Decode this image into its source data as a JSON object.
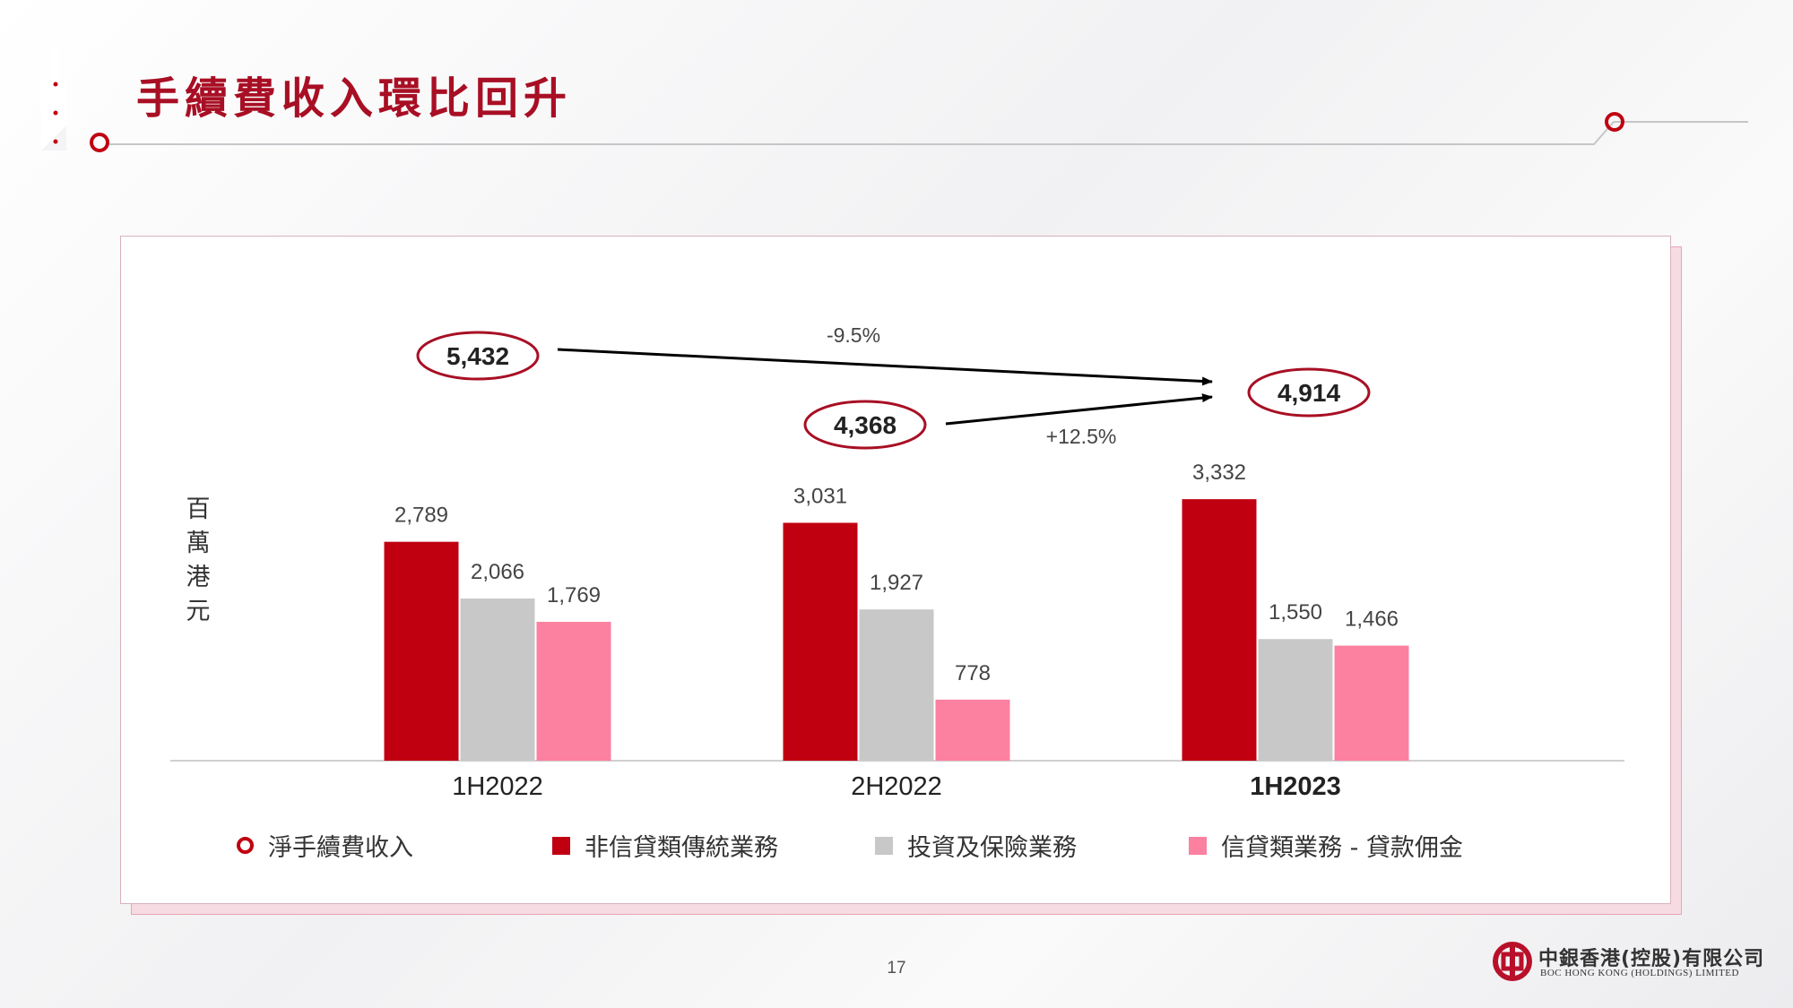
{
  "slide": {
    "title": "手續費收入環比回升",
    "page_number": "17",
    "logo": {
      "name_cn": "中銀香港(控股)有限公司",
      "name_en": "BOC HONG KONG (HOLDINGS) LIMITED"
    }
  },
  "colors": {
    "brand_red": "#c00010",
    "title_red": "#a80f24",
    "grey": "#c8c8c8",
    "pink": "#fc80a0"
  },
  "chart_data": {
    "type": "bar",
    "unit_label": "百萬港元",
    "categories": [
      "1H2022",
      "2H2022",
      "1H2023"
    ],
    "series": [
      {
        "name": "非信貸類傳統業務",
        "color": "#c00010",
        "values": [
          2789,
          3031,
          3332
        ],
        "labels": [
          "2,789",
          "3,031",
          "3,332"
        ]
      },
      {
        "name": "投資及保險業務",
        "color": "#c8c8c8",
        "values": [
          2066,
          1927,
          1550
        ],
        "labels": [
          "2,066",
          "1,927",
          "1,550"
        ]
      },
      {
        "name": "信貸類業務 - 貸款佣金",
        "color": "#fc80a0",
        "values": [
          1769,
          778,
          1466
        ],
        "labels": [
          "1,769",
          "778",
          "1,466"
        ]
      }
    ],
    "totals": {
      "name": "淨手續費收入",
      "values": [
        5432,
        4368,
        4914
      ],
      "labels": [
        "5,432",
        "4,368",
        "4,914"
      ]
    },
    "annotations": [
      {
        "from": "1H2022",
        "to": "1H2023",
        "label": "-9.5%"
      },
      {
        "from": "2H2022",
        "to": "1H2023",
        "label": "+12.5%"
      }
    ],
    "ylim": [
      0,
      3600
    ],
    "grid": false,
    "legend_position": "bottom"
  }
}
